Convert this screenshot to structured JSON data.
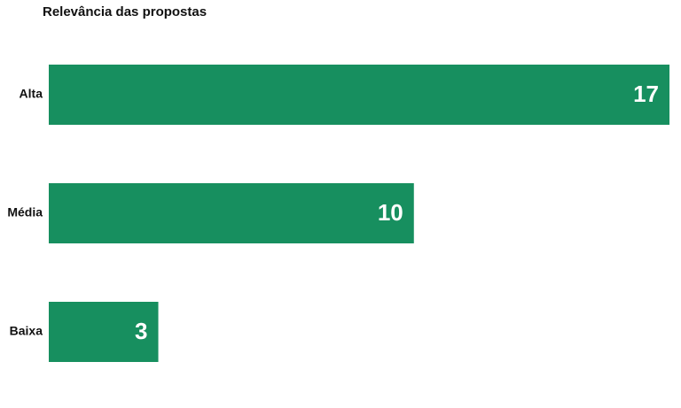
{
  "chart_data": {
    "type": "hbar",
    "title": "Relevância das propostas",
    "categories": [
      "Alta",
      "Média",
      "Baixa"
    ],
    "values": [
      17,
      10,
      3
    ],
    "color": "#178f5f",
    "xlim": [
      0,
      17
    ]
  }
}
